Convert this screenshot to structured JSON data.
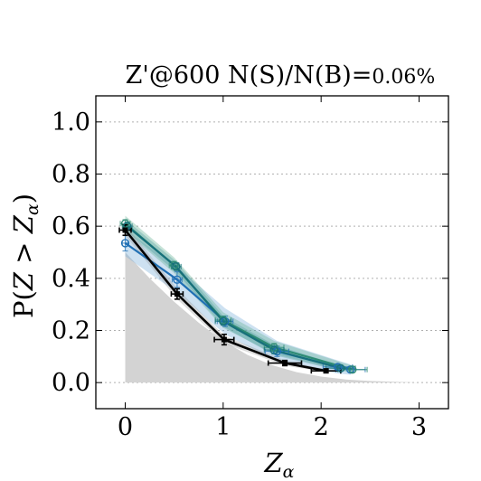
{
  "chart_data": {
    "type": "line",
    "title_main": "Z'@600 N(S)/N(B)=",
    "title_value": "0.06%",
    "xlabel": "Z_α",
    "ylabel": "P(Z > Z_α)",
    "xlim": [
      -0.3,
      3.3
    ],
    "ylim": [
      -0.1,
      1.1
    ],
    "xticks": [
      0,
      1,
      2,
      3
    ],
    "yticks": [
      0.0,
      0.2,
      0.4,
      0.6,
      0.8,
      1.0
    ],
    "xtick_labels": [
      "0",
      "1",
      "2",
      "3"
    ],
    "ytick_labels": [
      "0.0",
      "0.2",
      "0.4",
      "0.6",
      "0.8",
      "1.0"
    ],
    "grid": "y-dotted",
    "reference_area": {
      "color": "#d3d3d3",
      "x": [
        0,
        0.25,
        0.5,
        0.75,
        1.0,
        1.25,
        1.5,
        1.75,
        2.0,
        2.25,
        2.5,
        2.75,
        3.0
      ],
      "y": [
        0.5,
        0.4,
        0.31,
        0.23,
        0.16,
        0.106,
        0.067,
        0.04,
        0.023,
        0.012,
        0.006,
        0.003,
        0.0
      ]
    },
    "series": [
      {
        "color": "#1f6fb4",
        "band_color": "#6fa8d6",
        "marker": "open-circle",
        "x": [
          0.0,
          0.53,
          1.02,
          1.55,
          2.17,
          2.3
        ],
        "y": [
          0.535,
          0.395,
          0.235,
          0.12,
          0.06,
          0.05
        ],
        "xerr": [
          0.03,
          0.05,
          0.08,
          0.12,
          0.15,
          0.15
        ],
        "yerr": [
          0.03,
          0.03,
          0.02,
          0.02,
          0.01,
          0.01
        ],
        "band": [
          0.05,
          0.05,
          0.05,
          0.04,
          0.025,
          0.02
        ]
      },
      {
        "color": "#2e8b74",
        "band_color": "#5fae8f",
        "marker": "open-circle",
        "x": [
          0.0,
          0.5,
          1.0,
          1.52,
          2.32
        ],
        "y": [
          0.61,
          0.45,
          0.24,
          0.135,
          0.05
        ],
        "xerr": [
          0.05,
          0.05,
          0.08,
          0.1,
          0.15
        ],
        "yerr": [
          0.015,
          0.015,
          0.015,
          0.015,
          0.01
        ],
        "band": [
          0.03,
          0.03,
          0.03,
          0.025,
          0.015
        ]
      },
      {
        "color": "#17707a",
        "band_color": "#4e9aa1",
        "marker": "open-circle",
        "x": [
          0.02,
          0.52,
          1.0,
          1.52,
          2.2
        ],
        "y": [
          0.6,
          0.445,
          0.235,
          0.125,
          0.055
        ],
        "xerr": [
          0.05,
          0.05,
          0.08,
          0.1,
          0.15
        ],
        "yerr": [
          0.015,
          0.015,
          0.015,
          0.015,
          0.01
        ],
        "band": [
          0.02,
          0.02,
          0.02,
          0.02,
          0.01
        ]
      },
      {
        "color": "#000000",
        "band_color": "#9a9a9a",
        "marker": "filled-square",
        "x": [
          0.0,
          0.53,
          1.01,
          1.63,
          2.05
        ],
        "y": [
          0.585,
          0.34,
          0.165,
          0.075,
          0.045
        ],
        "xerr": [
          0.06,
          0.06,
          0.1,
          0.17,
          0.15
        ],
        "yerr": [
          0.02,
          0.02,
          0.02,
          0.01,
          0.007
        ],
        "band": [
          0.02,
          0.02,
          0.015,
          0.01,
          0.005
        ]
      }
    ]
  }
}
